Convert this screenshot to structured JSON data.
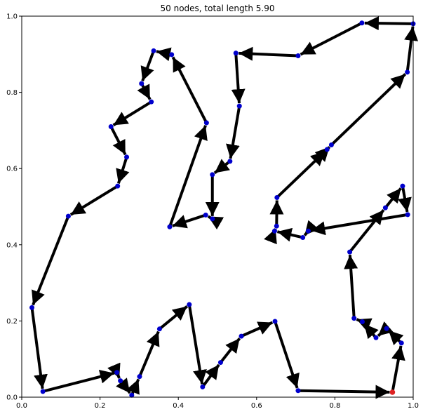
{
  "chart_data": {
    "type": "line",
    "title": "50 nodes, total length 5.90",
    "xlabel": "",
    "ylabel": "",
    "xlim": [
      0,
      1
    ],
    "ylim": [
      0,
      1
    ],
    "x_ticks": [
      "0.0",
      "0.2",
      "0.4",
      "0.6",
      "0.8",
      "1.0"
    ],
    "y_ticks": [
      "0.0",
      "0.2",
      "0.4",
      "0.6",
      "0.8",
      "1.0"
    ],
    "grid": false,
    "colors": {
      "path": "#000000",
      "node": "#0000cc",
      "start": "#dd2222"
    },
    "start_node": [
      0.947,
      0.013
    ],
    "tour": [
      [
        0.947,
        0.013
      ],
      [
        0.97,
        0.142
      ],
      [
        0.932,
        0.18
      ],
      [
        0.905,
        0.156
      ],
      [
        0.87,
        0.198
      ],
      [
        0.849,
        0.207
      ],
      [
        0.838,
        0.381
      ],
      [
        0.929,
        0.497
      ],
      [
        0.973,
        0.554
      ],
      [
        0.986,
        0.479
      ],
      [
        0.732,
        0.436
      ],
      [
        0.718,
        0.419
      ],
      [
        0.646,
        0.436
      ],
      [
        0.651,
        0.449
      ],
      [
        0.652,
        0.524
      ],
      [
        0.78,
        0.65
      ],
      [
        0.791,
        0.662
      ],
      [
        0.985,
        0.853
      ],
      [
        1.0,
        0.98
      ],
      [
        0.869,
        0.982
      ],
      [
        0.706,
        0.896
      ],
      [
        0.547,
        0.903
      ],
      [
        0.556,
        0.764
      ],
      [
        0.532,
        0.619
      ],
      [
        0.487,
        0.584
      ],
      [
        0.487,
        0.468
      ],
      [
        0.47,
        0.478
      ],
      [
        0.378,
        0.447
      ],
      [
        0.472,
        0.72
      ],
      [
        0.383,
        0.899
      ],
      [
        0.337,
        0.909
      ],
      [
        0.306,
        0.823
      ],
      [
        0.331,
        0.775
      ],
      [
        0.228,
        0.71
      ],
      [
        0.268,
        0.63
      ],
      [
        0.245,
        0.554
      ],
      [
        0.119,
        0.475
      ],
      [
        0.026,
        0.235
      ],
      [
        0.054,
        0.015
      ],
      [
        0.243,
        0.065
      ],
      [
        0.252,
        0.043
      ],
      [
        0.281,
        0.005
      ],
      [
        0.301,
        0.054
      ],
      [
        0.352,
        0.179
      ],
      [
        0.428,
        0.243
      ],
      [
        0.462,
        0.027
      ],
      [
        0.508,
        0.091
      ],
      [
        0.561,
        0.16
      ],
      [
        0.647,
        0.199
      ],
      [
        0.706,
        0.017
      ],
      [
        0.947,
        0.013
      ]
    ]
  }
}
